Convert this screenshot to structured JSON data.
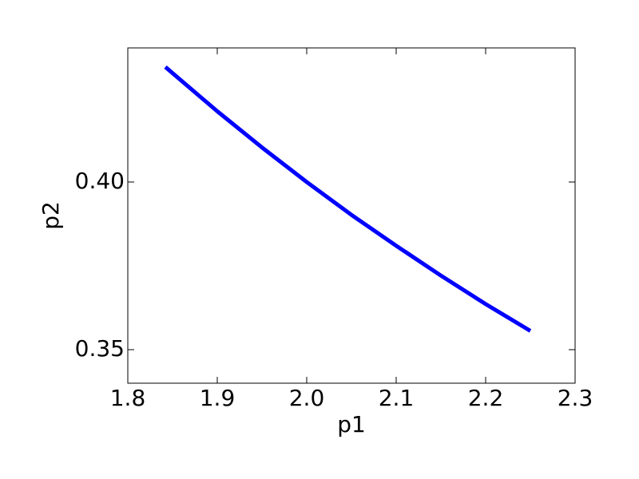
{
  "chart_data": {
    "type": "line",
    "x_label": "p1",
    "y_label": "p2",
    "x": [
      1.842,
      1.9,
      1.95,
      2.0,
      2.05,
      2.1,
      2.15,
      2.2,
      2.25
    ],
    "series": [
      {
        "color": "#0000ff",
        "values": [
          0.4343,
          0.4211,
          0.4103,
          0.4,
          0.3902,
          0.381,
          0.3721,
          0.3636,
          0.3556
        ]
      }
    ],
    "xlim": [
      1.8,
      2.3
    ],
    "xticks": [
      1.8,
      1.9,
      {
        "value": 2,
        "label": "2.0"
      },
      2.1,
      2.2,
      2.3
    ],
    "ylim": [
      0.34,
      0.44
    ],
    "yticks": [
      0.35,
      {
        "value": 0.4,
        "label": "0.40"
      }
    ]
  }
}
